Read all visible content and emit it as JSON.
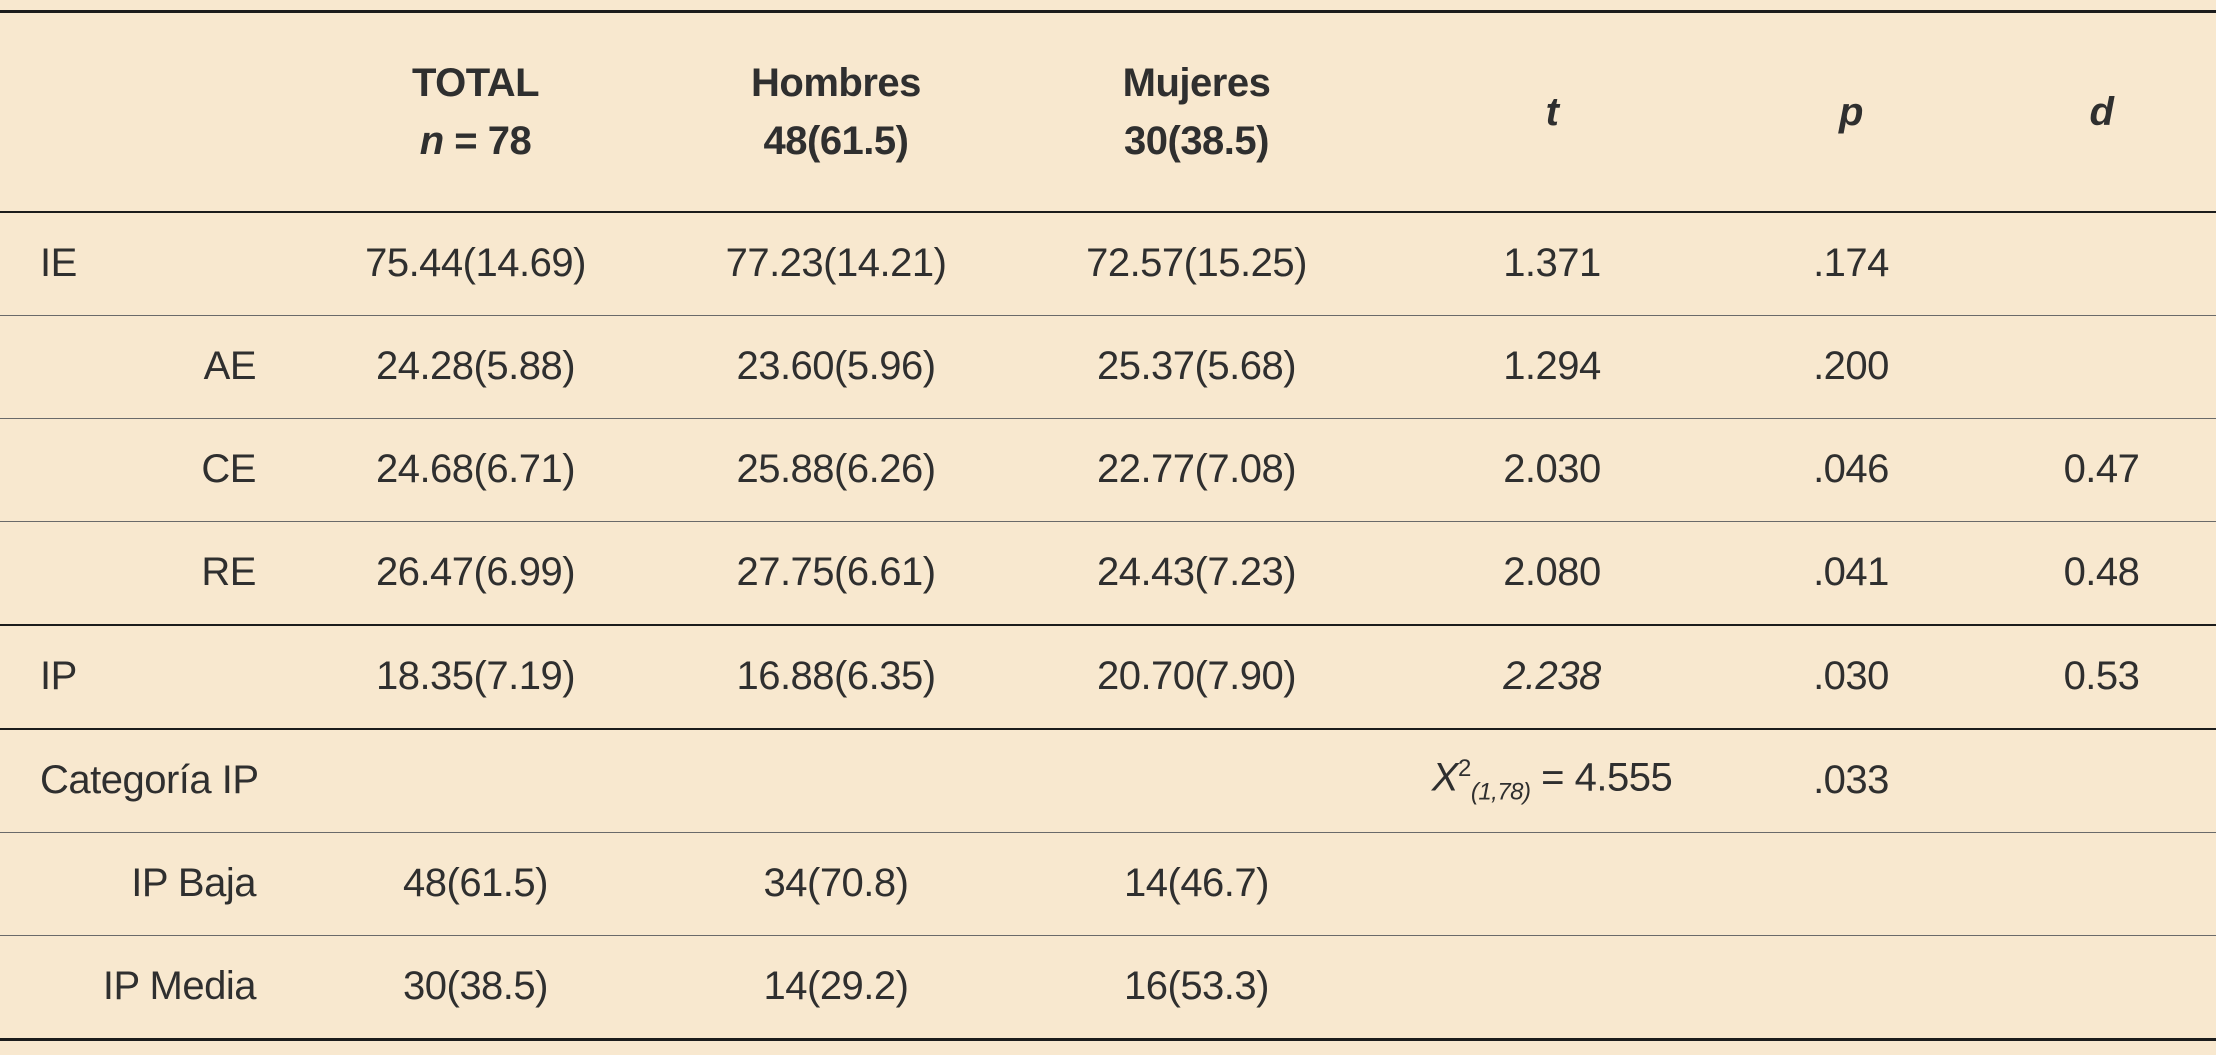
{
  "header": {
    "total_line1": "TOTAL",
    "total_n": "n",
    "total_eq": " = 78",
    "hombres_line1": "Hombres",
    "hombres_line2": "48(61.5)",
    "mujeres_line1": "Mujeres",
    "mujeres_line2": "30(38.5)",
    "t": "t",
    "p": "p",
    "d": "d"
  },
  "rows": [
    {
      "label": "IE",
      "total": "75.44(14.69)",
      "hombres": "77.23(14.21)",
      "mujeres": "72.57(15.25)",
      "t": "1.371",
      "p": ".174",
      "d": ""
    },
    {
      "label": "AE",
      "total": "24.28(5.88)",
      "hombres": "23.60(5.96)",
      "mujeres": "25.37(5.68)",
      "t": "1.294",
      "p": ".200",
      "d": ""
    },
    {
      "label": "CE",
      "total": "24.68(6.71)",
      "hombres": "25.88(6.26)",
      "mujeres": "22.77(7.08)",
      "t": "2.030",
      "p": ".046",
      "d": "0.47"
    },
    {
      "label": "RE",
      "total": "26.47(6.99)",
      "hombres": "27.75(6.61)",
      "mujeres": "24.43(7.23)",
      "t": "2.080",
      "p": ".041",
      "d": "0.48"
    },
    {
      "label": "IP",
      "total": "18.35(7.19)",
      "hombres": "16.88(6.35)",
      "mujeres": "20.70(7.90)",
      "t": "2.238",
      "p": ".030",
      "d": "0.53"
    },
    {
      "label": "Categoría IP",
      "total": "",
      "hombres": "",
      "mujeres": "",
      "t_chi_symbol": "X",
      "t_chi_sup": "2",
      "t_chi_sub": "(1,78)",
      "t_chi_value": " = 4.555",
      "p": ".033",
      "d": ""
    },
    {
      "label": "IP Baja",
      "total": "48(61.5)",
      "hombres": "34(70.8)",
      "mujeres": "14(46.7)",
      "t": "",
      "p": "",
      "d": ""
    },
    {
      "label": "IP Media",
      "total": "30(38.5)",
      "hombres": "14(29.2)",
      "mujeres": "16(53.3)",
      "t": "",
      "p": "",
      "d": ""
    }
  ]
}
